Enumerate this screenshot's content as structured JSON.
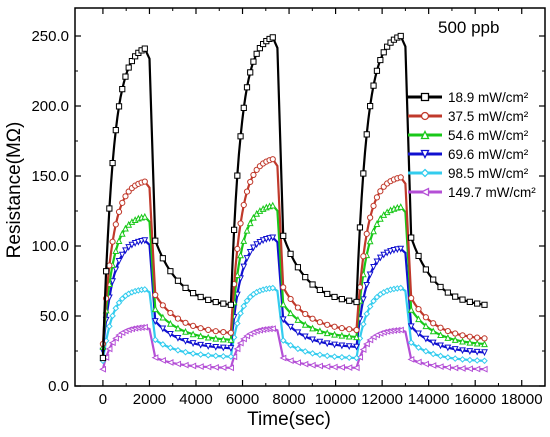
{
  "chart_data": {
    "type": "line",
    "title": "",
    "annotation": "500 ppb",
    "xlabel": "Time(sec)",
    "ylabel": "Resistance(MΩ)",
    "xlim": [
      -1200,
      19000
    ],
    "ylim": [
      0,
      270
    ],
    "x_ticks": [
      0,
      2000,
      4000,
      6000,
      8000,
      10000,
      12000,
      14000,
      16000,
      18000
    ],
    "y_ticks": [
      0,
      50,
      100,
      150,
      200,
      250
    ],
    "x_tick_labels": [
      "0",
      "2000",
      "4000",
      "6000",
      "8000",
      "10000",
      "12000",
      "14000",
      "16000",
      "18000"
    ],
    "y_tick_labels": [
      "0.0",
      "50.0",
      "100.0",
      "150.0",
      "200.0",
      "250.0"
    ],
    "grid": false,
    "legend_position": "right",
    "x_max_data": 16400,
    "cycles": [
      {
        "on": 0,
        "peak_end": 1800,
        "off": 2000
      },
      {
        "on": 5500,
        "peak_end": 7300,
        "off": 7500
      },
      {
        "on": 10900,
        "peak_end": 12800,
        "off": 13000
      }
    ],
    "series": [
      {
        "name": "18.9 mW/cm²",
        "color": "#000000",
        "marker": "square",
        "baseline": 20,
        "peaks": [
          241,
          249,
          250
        ],
        "cycle_end": [
          58,
          60,
          58
        ],
        "dark_tail_mode": "linear_to_base"
      },
      {
        "name": "37.5 mW/cm²",
        "color": "#c0392b",
        "marker": "circle",
        "baseline": 30,
        "peaks": [
          146,
          162,
          149
        ],
        "cycle_end": [
          38,
          40,
          34
        ]
      },
      {
        "name": "54.6 mW/cm²",
        "color": "#19c819",
        "marker": "triangle-up",
        "baseline": 28,
        "peaks": [
          121,
          129,
          128
        ],
        "cycle_end": [
          33,
          35,
          30
        ]
      },
      {
        "name": "69.6 mW/cm²",
        "color": "#1010d0",
        "marker": "triangle-down",
        "baseline": 25,
        "peaks": [
          104,
          106,
          98
        ],
        "cycle_end": [
          27,
          28,
          24
        ]
      },
      {
        "name": "98.5 mW/cm²",
        "color": "#33ccee",
        "marker": "diamond",
        "baseline": 18,
        "peaks": [
          69,
          70,
          70
        ],
        "cycle_end": [
          21,
          20,
          18
        ]
      },
      {
        "name": "149.7 mW/cm²",
        "color": "#b44fd6",
        "marker": "triangle-left",
        "baseline": 12,
        "peaks": [
          42,
          41,
          40
        ],
        "cycle_end": [
          13,
          13,
          12
        ]
      }
    ]
  }
}
